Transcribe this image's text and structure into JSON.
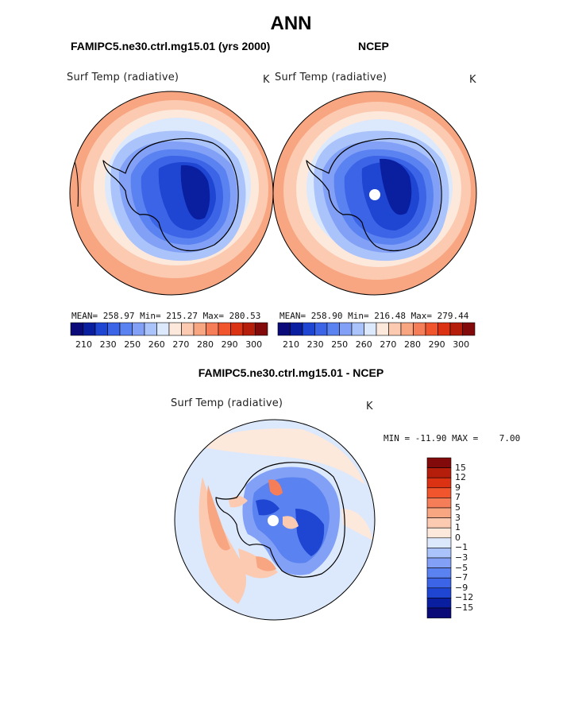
{
  "title": "ANN",
  "panels": [
    {
      "case_label": "FAMIPC5.ne30.ctrl.mg15.01 (yrs 2000)",
      "variable": "Surf Temp (radiative)",
      "units": "K",
      "stats": {
        "mean": "258.97",
        "min": "215.27",
        "max": "280.53"
      },
      "stats_text": "MEAN= 258.97  Min= 215.27  Max= 280.53"
    },
    {
      "case_label": "NCEP",
      "variable": "Surf Temp (radiative)",
      "units": "K",
      "stats": {
        "mean": "258.90",
        "min": "216.48",
        "max": "279.44"
      },
      "stats_text": "MEAN= 258.90  Min= 216.48  Max= 279.44"
    }
  ],
  "diff_panel": {
    "case_label": "FAMIPC5.ne30.ctrl.mg15.01 - NCEP",
    "variable": "Surf Temp (radiative)",
    "units": "K",
    "min_max_text": "MIN = -11.90 MAX =    7.00"
  },
  "top_colorbar": {
    "labels": [
      "210",
      "230",
      "250",
      "260",
      "270",
      "280",
      "290",
      "300"
    ],
    "colors": [
      "#0a0a78",
      "#0a1ea0",
      "#1e46d2",
      "#3c64e6",
      "#5a82f0",
      "#82a0f5",
      "#aac3fa",
      "#dce8fc",
      "#fde8dc",
      "#fccab0",
      "#f8a582",
      "#f57e58",
      "#f0552d",
      "#dc3214",
      "#b41e0a",
      "#820a0a"
    ]
  },
  "diff_colorbar": {
    "labels": [
      "15",
      "12",
      "9",
      "7",
      "5",
      "3",
      "1",
      "0",
      "−1",
      "−3",
      "−5",
      "−7",
      "−9",
      "−12",
      "−15"
    ],
    "colors": [
      "#820a0a",
      "#b41e0a",
      "#dc3214",
      "#f0552d",
      "#f57e58",
      "#f8a582",
      "#fccab0",
      "#fde8dc",
      "#dce8fc",
      "#aac3fa",
      "#82a0f5",
      "#5a82f0",
      "#3c64e6",
      "#1e46d2",
      "#0a1ea0",
      "#0a0a78"
    ]
  },
  "map_colors": {
    "warm_outer": "#f8a582",
    "warm_mid": "#fccab0",
    "warm_light": "#fde8dc",
    "cool_light": "#dce8fc",
    "cool_1": "#aac3fa",
    "cool_2": "#82a0f5",
    "cool_3": "#5a82f0",
    "cool_4": "#3c64e6",
    "cool_5": "#1e46d2",
    "cool_6": "#0a1ea0"
  }
}
